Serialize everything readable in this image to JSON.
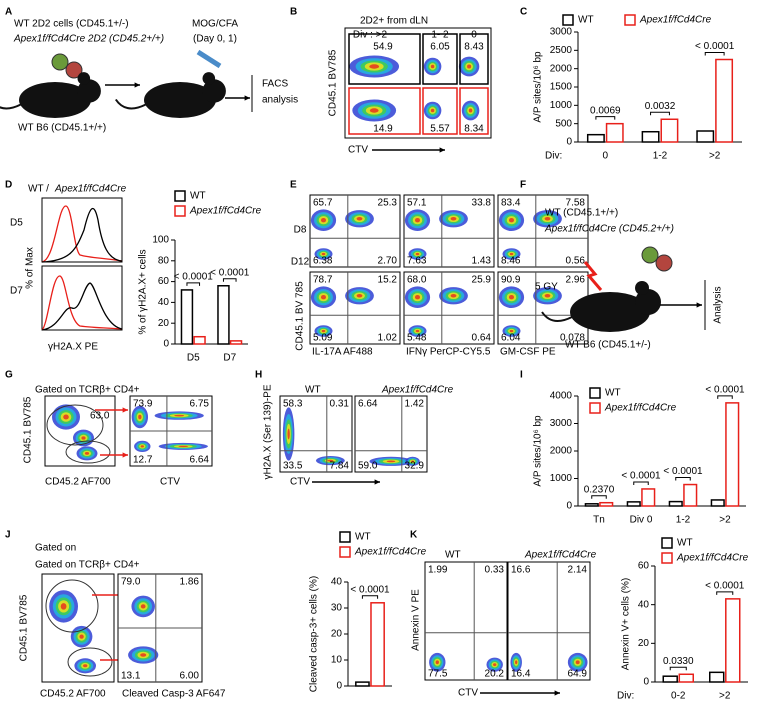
{
  "panels": {
    "A": {
      "letter": "A",
      "line1": "WT 2D2 cells (CD45.1+/-)",
      "line2": "Apex1f/fCd4Cre 2D2 (CD45.2+/+)",
      "treatment": "MOG/CFA",
      "days": "(Day 0, 1)",
      "readout1": "FACS",
      "readout2": "analysis",
      "host": "WT B6 (CD45.1+/+)"
    },
    "B": {
      "letter": "B",
      "title": "2D2+ from dLN",
      "div_labels": [
        "Div : >2",
        "1- 2",
        "0"
      ],
      "upper": [
        "54.9",
        "6.05",
        "8.43"
      ],
      "lower": [
        "14.9",
        "5.57",
        "8.34"
      ],
      "ylabel": "CD45.1 BV785",
      "xlabel": "CTV"
    },
    "C": {
      "letter": "C"
    },
    "D": {
      "letter": "D",
      "title_wt": "WT /",
      "title_ko": "Apex1f/fCd4Cre",
      "rows": [
        "D5",
        "D7"
      ],
      "ylabel": "% of Max",
      "xlabel": "γH2A.X  PE"
    },
    "E": {
      "letter": "E",
      "rows": [
        "D8",
        "D12"
      ],
      "ylabel": "CD45.1 BV 785",
      "xlabels": [
        "IL-17A AF488",
        "IFNγ PerCP-CY5.5",
        "GM-CSF PE"
      ],
      "quadrants": [
        [
          [
            "65.7",
            "25.3",
            "6.38",
            "2.70"
          ],
          [
            "57.1",
            "33.8",
            "7.63",
            "1.43"
          ],
          [
            "83.4",
            "7.58",
            "8.46",
            "0.56"
          ]
        ],
        [
          [
            "78.7",
            "15.2",
            "5.09",
            "1.02"
          ],
          [
            "68.0",
            "25.9",
            "5.48",
            "0.64"
          ],
          [
            "90.9",
            "2.96",
            "6.04",
            "0.078"
          ]
        ]
      ]
    },
    "F": {
      "letter": "F",
      "line1": "WT (CD45.1+/+)",
      "line2": "Apex1f/fCd4Cre (CD45.2+/+)",
      "dose": "5 GY",
      "readout": "Analysis",
      "host": "WT B6 (CD45.1+/-)"
    },
    "G": {
      "letter": "G",
      "gate": "Gated on TCRβ+ CD4+",
      "gate_value": "63.0",
      "quadrants": [
        "73.9",
        "6.75",
        "12.7",
        "6.64"
      ],
      "ylabel": "CD45.1 BV785",
      "xlabels": [
        "CD45.2 AF700",
        "CTV"
      ]
    },
    "H": {
      "letter": "H",
      "groups": [
        "WT",
        "Apex1f/fCd4Cre"
      ],
      "quadrants": [
        [
          "58.3",
          "0.31",
          "33.5",
          "7.84"
        ],
        [
          "6.64",
          "1.42",
          "59.0",
          "32.9"
        ]
      ],
      "ylabel": "γH2A.X (Ser 139)-PE",
      "xlabel": "CTV"
    },
    "I": {
      "letter": "I"
    },
    "J": {
      "letter": "J",
      "note": "Gated on",
      "gate": "Gated on TCRβ+ CD4+",
      "quadrants": [
        "79.0",
        "1.86",
        "13.1",
        "6.00"
      ],
      "ylabel": "CD45.1 BV785",
      "xlabels": [
        "CD45.2 AF700",
        "Cleaved Casp-3 AF647"
      ]
    },
    "K": {
      "letter": "K",
      "groups": [
        "WT",
        "Apex1f/fCd4Cre"
      ],
      "quadrants": [
        [
          "1.99",
          "0.33",
          "77.5",
          "20.2"
        ],
        [
          "16.6",
          "2.14",
          "16.4",
          "64.9"
        ]
      ],
      "ylabel": "Annexin V PE",
      "xlabel": "CTV"
    }
  },
  "chart_data": [
    {
      "type": "bar",
      "ylabel": "A/P sites/10⁶ bp",
      "ylim": [
        0,
        3000
      ],
      "yticks": [
        0,
        500,
        1000,
        1500,
        2000,
        2500,
        3000
      ],
      "x_prefix": "Div:",
      "categories": [
        "0",
        "1-2",
        ">2"
      ],
      "series": [
        {
          "name": "WT",
          "color": "#000000",
          "values": [
            200,
            280,
            300
          ]
        },
        {
          "name": "Apex1f/fCd4Cre",
          "color": "#e8201a",
          "values": [
            500,
            620,
            2250
          ]
        }
      ],
      "annotations": [
        "0.0069",
        "0.0032",
        "< 0.0001"
      ]
    },
    {
      "type": "bar",
      "ylabel": "% of γH2A.X+ cells",
      "ylim": [
        0,
        100
      ],
      "yticks": [
        0,
        20,
        40,
        60,
        80,
        100
      ],
      "categories": [
        "D5",
        "D7"
      ],
      "series": [
        {
          "name": "WT",
          "color": "#000000",
          "values": [
            52,
            56
          ]
        },
        {
          "name": "Apex1f/fCd4Cre",
          "color": "#e8201a",
          "values": [
            7,
            3
          ]
        }
      ],
      "annotations": [
        "< 0.0001",
        "< 0.0001"
      ]
    },
    {
      "type": "bar",
      "ylabel": "A/P sites/10⁶ bp",
      "ylim": [
        0,
        4000
      ],
      "yticks": [
        0,
        1000,
        2000,
        3000,
        4000
      ],
      "categories": [
        "Tn",
        "Div 0",
        "1-2",
        ">2"
      ],
      "series": [
        {
          "name": "WT",
          "color": "#000000",
          "values": [
            80,
            150,
            160,
            220
          ]
        },
        {
          "name": "Apex1f/fCd4Cre",
          "color": "#e8201a",
          "values": [
            120,
            620,
            780,
            3750
          ]
        }
      ],
      "annotations": [
        "0.2370",
        "< 0.0001",
        "< 0.0001",
        "< 0.0001"
      ]
    },
    {
      "type": "bar",
      "ylabel": "Cleaved casp-3+ cells (%)",
      "ylim": [
        0,
        40
      ],
      "yticks": [
        0,
        10,
        20,
        30,
        40
      ],
      "categories": [
        null
      ],
      "series": [
        {
          "name": "WT",
          "color": "#000000",
          "values": [
            1.5
          ]
        },
        {
          "name": "Apex1f/fCd4Cre",
          "color": "#e8201a",
          "values": [
            32
          ]
        }
      ],
      "annotations": [
        "< 0.0001"
      ]
    },
    {
      "type": "bar",
      "ylabel": "Annexin V+ cells (%)",
      "ylim": [
        0,
        60
      ],
      "yticks": [
        0,
        20,
        40,
        60
      ],
      "x_prefix": "Div:",
      "categories": [
        "0-2",
        ">2"
      ],
      "series": [
        {
          "name": "WT",
          "color": "#000000",
          "values": [
            3,
            5
          ]
        },
        {
          "name": "Apex1f/fCd4Cre",
          "color": "#e8201a",
          "values": [
            4,
            43
          ]
        }
      ],
      "annotations": [
        "0.0330",
        "< 0.0001"
      ]
    }
  ]
}
